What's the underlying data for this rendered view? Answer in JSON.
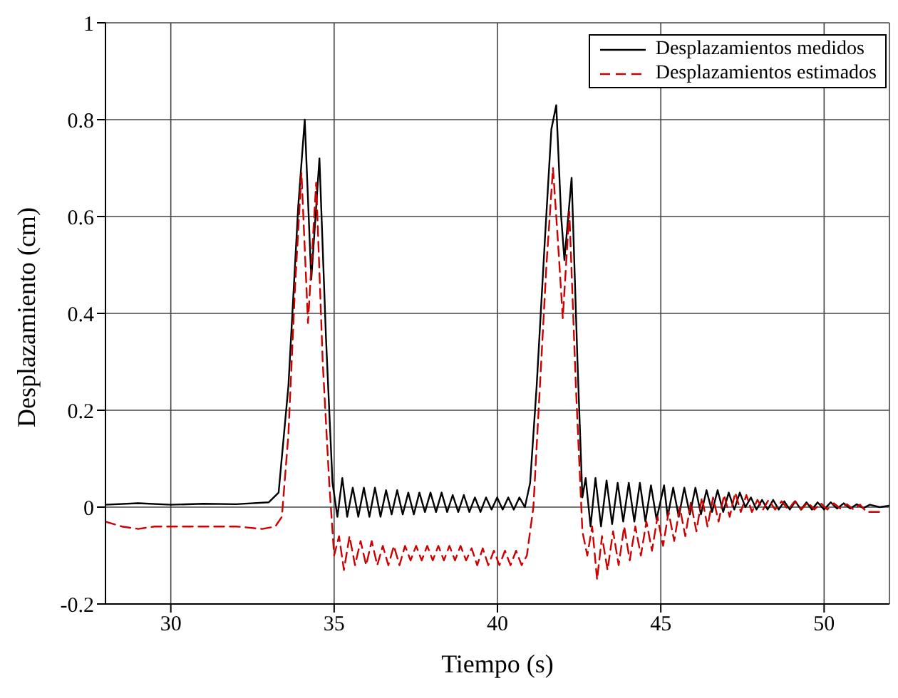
{
  "chart_data": {
    "type": "line",
    "xlabel": "Tiempo (s)",
    "ylabel": "Desplazamiento (cm)",
    "xlim": [
      28,
      52
    ],
    "xticks": [
      30,
      35,
      40,
      45,
      50
    ],
    "ylim": [
      -0.2,
      1
    ],
    "yticks": [
      -0.2,
      0,
      0.2,
      0.4,
      0.6,
      0.8,
      1
    ],
    "grid": true,
    "legend": "top right",
    "marker": "none",
    "series": [
      {
        "name": "Desplazamientos medidos",
        "color": "#000000",
        "line_style": "solid",
        "x": [
          28,
          29,
          30,
          31,
          32,
          33,
          33.3,
          33.6,
          33.9,
          34.1,
          34.3,
          34.55,
          34.75,
          34.95,
          35.1,
          35.25,
          35.4,
          35.57,
          35.74,
          35.91,
          36.08,
          36.25,
          36.42,
          36.59,
          36.76,
          36.93,
          37.1,
          37.27,
          37.44,
          37.61,
          37.78,
          37.95,
          38.12,
          38.29,
          38.46,
          38.63,
          38.8,
          38.97,
          39.14,
          39.31,
          39.48,
          39.65,
          39.82,
          39.99,
          40.16,
          40.33,
          40.5,
          40.67,
          40.84,
          41,
          41.2,
          41.45,
          41.65,
          41.8,
          41.95,
          42.05,
          42.27,
          42.45,
          42.6,
          42.7,
          42.85,
          43,
          43.17,
          43.34,
          43.51,
          43.68,
          43.85,
          44.02,
          44.19,
          44.36,
          44.53,
          44.7,
          44.87,
          45.1,
          45.21,
          45.38,
          45.55,
          45.72,
          45.89,
          46.06,
          46.23,
          46.4,
          46.57,
          46.74,
          46.91,
          47.08,
          47.25,
          47.42,
          47.59,
          47.76,
          47.93,
          48.1,
          48.27,
          48.44,
          48.61,
          48.78,
          48.95,
          49.12,
          49.29,
          49.46,
          49.63,
          49.8,
          50,
          50.2,
          50.4,
          50.6,
          50.8,
          51,
          51.2,
          51.4,
          51.7,
          52
        ],
        "values": [
          0.005,
          0.008,
          0.005,
          0.007,
          0.006,
          0.01,
          0.03,
          0.25,
          0.62,
          0.8,
          0.47,
          0.72,
          0.35,
          0.05,
          -0.02,
          0.06,
          -0.02,
          0.04,
          -0.02,
          0.04,
          -0.02,
          0.04,
          -0.02,
          0.035,
          -0.015,
          0.035,
          -0.015,
          0.03,
          -0.015,
          0.03,
          -0.01,
          0.03,
          -0.01,
          0.03,
          -0.01,
          0.025,
          -0.01,
          0.025,
          -0.01,
          0.02,
          -0.01,
          0.02,
          -0.005,
          0.02,
          -0.005,
          0.02,
          -0.005,
          0.02,
          0,
          0.05,
          0.25,
          0.55,
          0.78,
          0.83,
          0.6,
          0.51,
          0.68,
          0.3,
          0.02,
          0.06,
          -0.04,
          0.06,
          -0.04,
          0.055,
          -0.035,
          0.05,
          -0.03,
          0.05,
          -0.03,
          0.05,
          -0.03,
          0.045,
          -0.025,
          0.045,
          -0.02,
          0.04,
          -0.02,
          0.04,
          -0.015,
          0.04,
          -0.015,
          0.035,
          -0.01,
          0.035,
          -0.01,
          0.03,
          -0.005,
          0.03,
          0,
          0.02,
          -0.005,
          0.015,
          -0.005,
          0.015,
          -0.005,
          0.012,
          -0.005,
          0.012,
          -0.005,
          0.01,
          -0.005,
          0.01,
          -0.005,
          0.01,
          -0.003,
          0.008,
          -0.003,
          0.006,
          -0.002,
          0.005,
          0,
          0.003
        ]
      },
      {
        "name": "Desplazamientos estimados",
        "color": "#cc0000",
        "line_style": "dashed",
        "x": [
          28,
          28.5,
          29,
          29.5,
          30,
          31,
          32,
          32.8,
          33.2,
          33.4,
          33.6,
          33.8,
          34,
          34.2,
          34.45,
          34.65,
          34.85,
          35,
          35.15,
          35.3,
          35.47,
          35.64,
          35.81,
          35.98,
          36.15,
          36.32,
          36.49,
          36.66,
          36.83,
          37,
          37.17,
          37.34,
          37.51,
          37.68,
          37.85,
          38.02,
          38.19,
          38.36,
          38.53,
          38.7,
          38.87,
          39.04,
          39.21,
          39.38,
          39.55,
          39.72,
          39.89,
          40.06,
          40.23,
          40.4,
          40.57,
          40.74,
          40.9,
          41.1,
          41.3,
          41.5,
          41.7,
          41.85,
          42,
          42.2,
          42.4,
          42.6,
          42.75,
          42.9,
          43.05,
          43.2,
          43.37,
          43.54,
          43.71,
          43.88,
          44.05,
          44.22,
          44.39,
          44.56,
          44.73,
          44.9,
          45.07,
          45.24,
          45.41,
          45.58,
          45.75,
          45.92,
          46.09,
          46.26,
          46.43,
          46.6,
          46.77,
          46.94,
          47.11,
          47.28,
          47.45,
          47.62,
          47.79,
          47.96,
          48.13,
          48.3,
          48.5,
          48.7,
          48.9,
          49.1,
          49.3,
          49.5,
          49.7,
          49.9,
          50.1,
          50.3,
          50.5,
          50.7,
          50.9,
          51.1,
          51.3,
          51.5,
          51.7
        ],
        "values": [
          -0.03,
          -0.04,
          -0.045,
          -0.04,
          -0.04,
          -0.04,
          -0.04,
          -0.045,
          -0.04,
          -0.02,
          0.15,
          0.45,
          0.69,
          0.38,
          0.67,
          0.3,
          0.05,
          -0.1,
          -0.06,
          -0.13,
          -0.06,
          -0.12,
          -0.07,
          -0.12,
          -0.07,
          -0.12,
          -0.08,
          -0.12,
          -0.08,
          -0.12,
          -0.08,
          -0.11,
          -0.08,
          -0.11,
          -0.08,
          -0.11,
          -0.08,
          -0.11,
          -0.08,
          -0.11,
          -0.08,
          -0.11,
          -0.085,
          -0.12,
          -0.085,
          -0.12,
          -0.09,
          -0.12,
          -0.09,
          -0.12,
          -0.09,
          -0.12,
          -0.1,
          0,
          0.25,
          0.5,
          0.7,
          0.55,
          0.39,
          0.61,
          0.25,
          -0.05,
          -0.1,
          -0.04,
          -0.15,
          -0.06,
          -0.13,
          -0.05,
          -0.12,
          -0.04,
          -0.11,
          -0.04,
          -0.1,
          -0.03,
          -0.09,
          -0.02,
          -0.08,
          -0.01,
          -0.07,
          0,
          -0.06,
          0.01,
          -0.05,
          0.02,
          -0.04,
          0.02,
          -0.03,
          0.025,
          -0.02,
          0.03,
          -0.01,
          0.025,
          -0.01,
          0.015,
          -0.005,
          0.015,
          -0.005,
          0.012,
          -0.005,
          0.012,
          -0.005,
          0.01,
          -0.005,
          0.008,
          -0.005,
          0.008,
          -0.003,
          0.006,
          -0.005,
          0.005,
          -0.01,
          -0.01,
          -0.01
        ]
      }
    ]
  }
}
